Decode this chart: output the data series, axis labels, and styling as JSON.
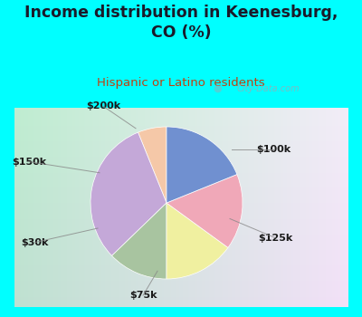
{
  "title": "Income distribution in Keenesburg,\nCO (%)",
  "subtitle": "Hispanic or Latino residents",
  "labels": [
    "$200k",
    "$100k",
    "$125k",
    "$75k",
    "$30k",
    "$150k"
  ],
  "sizes": [
    5.5,
    28.0,
    11.5,
    13.5,
    14.5,
    17.0
  ],
  "colors": [
    "#f5c8a8",
    "#c4a8d8",
    "#a8c4a0",
    "#f0f0a0",
    "#f0a8b8",
    "#7090d0"
  ],
  "title_color": "#1a1a2a",
  "subtitle_color": "#c04010",
  "label_color": "#1a1a1a",
  "watermark": "City-Data.com",
  "startangle": 90,
  "cyan_border": "#00ffff",
  "chart_bg_top_left": "#c8e8d0",
  "chart_bg_bottom_right": "#d0e8f0"
}
